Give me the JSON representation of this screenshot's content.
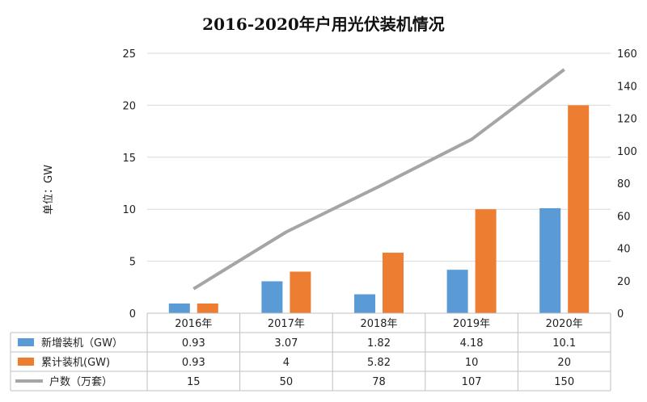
{
  "chart_data": {
    "type": "bar",
    "title": "2016-2020年户用光伏装机情况",
    "ylabel": "单位：GW",
    "categories": [
      "2016年",
      "2017年",
      "2018年",
      "2019年",
      "2020年"
    ],
    "ylim": [
      0,
      25
    ],
    "y2lim": [
      0,
      160
    ],
    "yticks": [
      "0",
      "5",
      "10",
      "15",
      "20",
      "25"
    ],
    "y2ticks": [
      "0",
      "20",
      "40",
      "60",
      "80",
      "100",
      "120",
      "140",
      "160"
    ],
    "grid": true,
    "series": [
      {
        "name": "新增装机（GW）",
        "type": "bar",
        "axis": "left",
        "color": "#5b9bd5",
        "values": [
          0.93,
          3.07,
          1.82,
          4.18,
          10.1
        ],
        "labels": [
          "0.93",
          "3.07",
          "1.82",
          "4.18",
          "10.1"
        ]
      },
      {
        "name": "累计装机(GW)",
        "type": "bar",
        "axis": "left",
        "color": "#ed7d31",
        "values": [
          0.93,
          4,
          5.82,
          10,
          20
        ],
        "labels": [
          "0.93",
          "4",
          "5.82",
          "10",
          "20"
        ]
      },
      {
        "name": "户数（万套）",
        "type": "line",
        "axis": "right",
        "color": "#a5a5a5",
        "values": [
          15,
          50,
          78,
          107,
          150
        ],
        "labels": [
          "15",
          "50",
          "78",
          "107",
          "150"
        ]
      }
    ],
    "legend_position": "data-table"
  }
}
